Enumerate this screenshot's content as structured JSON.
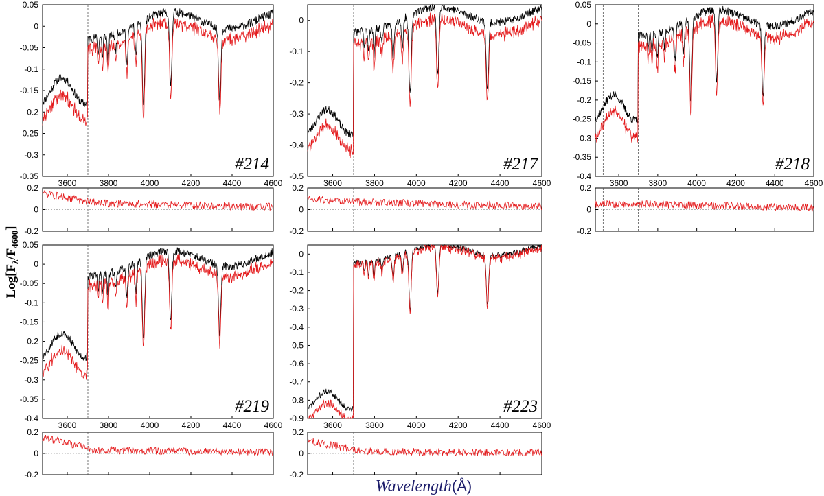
{
  "figure": {
    "ylabel_main": "Log[F",
    "ylabel_lambda": "λ",
    "ylabel_mid": "/F",
    "ylabel_sub": "4600",
    "ylabel_end": "]",
    "xlabel_text": "Wavelength",
    "xlabel_unit": "(Å)",
    "colors": {
      "observed": "#000000",
      "model": "#e41a1c",
      "marker": "#555555"
    }
  },
  "chart_data": [
    {
      "type": "line",
      "label": "#214",
      "xlim": [
        3480,
        4600
      ],
      "xticks": [
        3600,
        3800,
        4000,
        4200,
        4400,
        4600
      ],
      "top": {
        "ylim": [
          -0.35,
          0.05
        ],
        "yticks": [
          -0.35,
          -0.3,
          -0.25,
          -0.2,
          -0.15,
          -0.1,
          -0.05,
          0,
          0.05
        ],
        "offset": 0.025,
        "scale": 1.0,
        "blue": -0.15,
        "seed": 11
      },
      "residual": {
        "ylim": [
          -0.2,
          0.2
        ],
        "yticks": [
          -0.2,
          0,
          0.2
        ],
        "start": 0.15,
        "level": 0.06
      },
      "marker_x": 3700
    },
    {
      "type": "line",
      "label": "#217",
      "xlim": [
        3480,
        4600
      ],
      "xticks": [
        3600,
        3800,
        4000,
        4200,
        4400,
        4600
      ],
      "top": {
        "ylim": [
          -0.5,
          0.05
        ],
        "yticks": [
          -0.5,
          -0.4,
          -0.3,
          -0.2,
          -0.1,
          0
        ],
        "offset": 0.04,
        "scale": 1.3,
        "blue": -0.25,
        "seed": 23
      },
      "residual": {
        "ylim": [
          -0.2,
          0.2
        ],
        "yticks": [
          -0.2,
          0,
          0.2
        ],
        "start": 0.1,
        "level": 0.07
      },
      "marker_x": 3700
    },
    {
      "type": "line",
      "label": "#218",
      "xlim": [
        3480,
        4600
      ],
      "xticks": [
        3600,
        3800,
        4000,
        4200,
        4400,
        4600
      ],
      "top": {
        "ylim": [
          -0.4,
          0.05
        ],
        "yticks": [
          -0.4,
          -0.35,
          -0.3,
          -0.25,
          -0.2,
          -0.15,
          -0.1,
          -0.05,
          0,
          0.05
        ],
        "offset": 0.03,
        "scale": 1.1,
        "blue": -0.2,
        "seed": 37
      },
      "residual": {
        "ylim": [
          -0.2,
          0.2
        ],
        "yticks": [
          -0.2,
          0,
          0.2
        ],
        "start": 0.05,
        "level": 0.05
      },
      "marker_x": 3700,
      "marker2_x": 3520
    },
    {
      "type": "line",
      "label": "#219",
      "xlim": [
        3480,
        4600
      ],
      "xticks": [
        3600,
        3800,
        4000,
        4200,
        4400,
        4600
      ],
      "top": {
        "ylim": [
          -0.4,
          0.05
        ],
        "yticks": [
          -0.4,
          -0.35,
          -0.3,
          -0.25,
          -0.2,
          -0.15,
          -0.1,
          -0.05,
          0,
          0.05
        ],
        "offset": 0.025,
        "scale": 1.05,
        "blue": -0.2,
        "seed": 53
      },
      "residual": {
        "ylim": [
          -0.2,
          0.2
        ],
        "yticks": [
          -0.2,
          0,
          0.2
        ],
        "start": 0.15,
        "level": 0.03
      },
      "marker_x": 3700
    },
    {
      "type": "line",
      "label": "#223",
      "xlim": [
        3480,
        4600
      ],
      "xticks": [
        3600,
        3800,
        4000,
        4200,
        4400,
        4600
      ],
      "top": {
        "ylim": [
          -0.9,
          0.05
        ],
        "yticks": [
          -0.9,
          -0.8,
          -0.7,
          -0.6,
          -0.5,
          -0.4,
          -0.3,
          -0.2,
          -0.1,
          0
        ],
        "offset": 0.015,
        "scale": 1.6,
        "blue": -0.5,
        "seed": 71
      },
      "residual": {
        "ylim": [
          -0.2,
          0.2
        ],
        "yticks": [
          -0.2,
          0,
          0.2
        ],
        "start": 0.12,
        "level": 0.02
      },
      "marker_x": 3700
    }
  ]
}
